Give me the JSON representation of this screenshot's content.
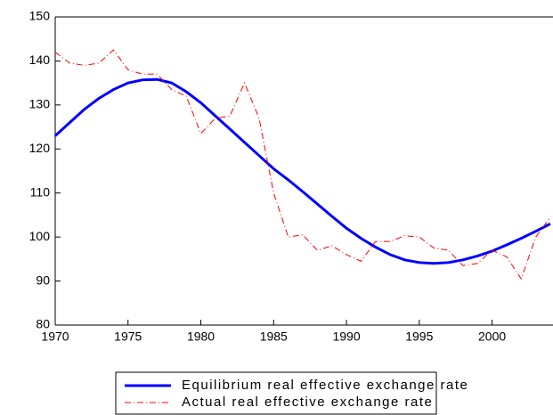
{
  "chart_data": {
    "type": "line",
    "x": [
      1970,
      1971,
      1972,
      1973,
      1974,
      1975,
      1976,
      1977,
      1978,
      1979,
      1980,
      1981,
      1982,
      1983,
      1984,
      1985,
      1986,
      1987,
      1988,
      1989,
      1990,
      1991,
      1992,
      1993,
      1994,
      1995,
      1996,
      1997,
      1998,
      1999,
      2000,
      2001,
      2002,
      2003,
      2004
    ],
    "series": [
      {
        "name": "Equilibrium real effective exchange rate",
        "color": "#0000ff",
        "style": "solid",
        "values": [
          123,
          126,
          129,
          131.5,
          133.5,
          135,
          135.7,
          135.8,
          135,
          133,
          130.5,
          127.5,
          124.5,
          121.5,
          118.5,
          115.5,
          113,
          110.3,
          107.5,
          104.7,
          102,
          99.7,
          97.7,
          96,
          94.8,
          94.2,
          94,
          94.2,
          94.8,
          95.7,
          96.8,
          98.2,
          99.7,
          101.3,
          103
        ]
      },
      {
        "name": "Actual real effective exchange rate",
        "color": "#ff0000",
        "style": "dashdot",
        "values": [
          142,
          139.5,
          139,
          139.5,
          142.5,
          138,
          137,
          137,
          133.5,
          132,
          123.5,
          127,
          127.5,
          135,
          127,
          110,
          100,
          100.5,
          97,
          98,
          96,
          94.5,
          99,
          99,
          100.3,
          100,
          97.5,
          97,
          93.5,
          94,
          97,
          95.5,
          90.5,
          100,
          104.5
        ]
      }
    ],
    "xlim": [
      1970,
      2004
    ],
    "xticks": [
      1970,
      1975,
      1980,
      1985,
      1990,
      1995,
      2000
    ],
    "ylim": [
      80,
      150
    ],
    "yticks": [
      80,
      90,
      100,
      110,
      120,
      130,
      140,
      150
    ],
    "legend": "bottom"
  }
}
